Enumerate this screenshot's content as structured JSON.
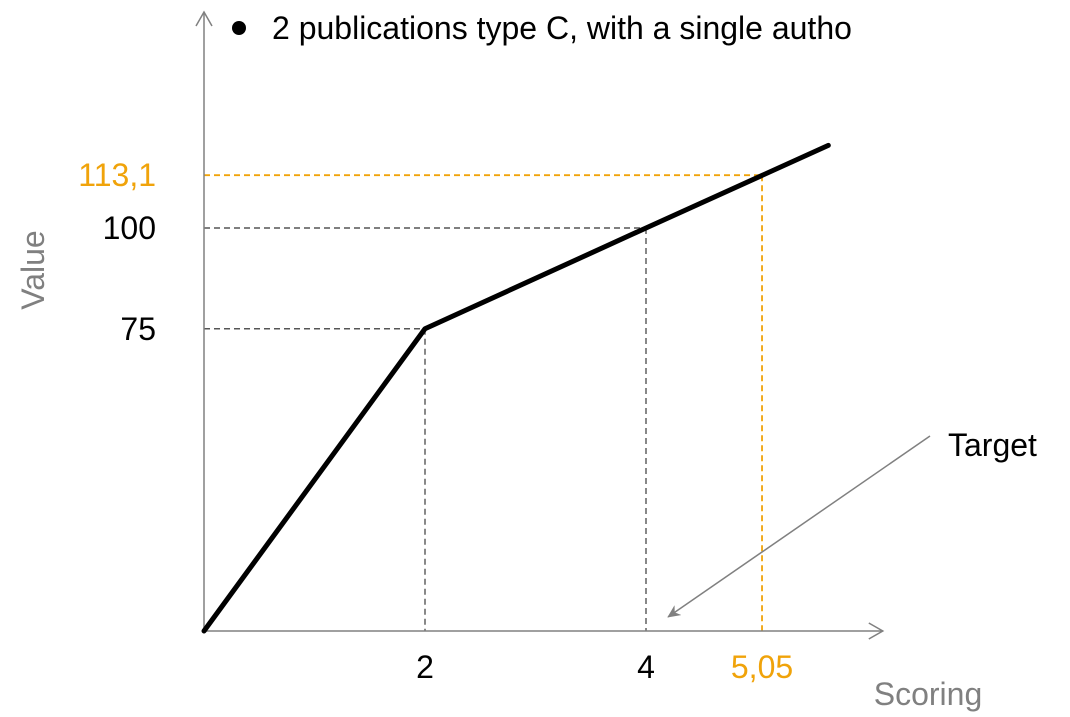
{
  "bullet_text": "2 publications type C, with a single autho",
  "colors": {
    "line": "#000000",
    "guide": "#555555",
    "highlight": "#F0A30A",
    "axis": "#808080",
    "annotation": "#808080"
  },
  "chart_data": {
    "type": "line",
    "title": "",
    "xlabel": "Scoring",
    "ylabel": "Value",
    "xlim": [
      0,
      5.6
    ],
    "ylim": [
      0,
      150
    ],
    "series": [
      {
        "x": [
          0,
          2,
          4,
          5.65
        ],
        "y": [
          0,
          75,
          100,
          120.5
        ]
      }
    ],
    "x_ticks": [
      {
        "value": 2,
        "label": "2"
      },
      {
        "value": 4,
        "label": "4"
      },
      {
        "value": 5.05,
        "label": "5,05",
        "highlight": true
      }
    ],
    "y_ticks": [
      {
        "value": 75,
        "label": "75"
      },
      {
        "value": 100,
        "label": "100"
      },
      {
        "value": 113.1,
        "label": "113,1",
        "highlight": true
      }
    ],
    "guides": [
      {
        "x": 2,
        "y": 75
      },
      {
        "x": 4,
        "y": 100
      },
      {
        "x": 5.05,
        "y": 113.1,
        "highlight": true
      }
    ],
    "annotations": [
      {
        "text": "Target",
        "points_to": {
          "x": 4.2,
          "y": 3.5
        }
      }
    ],
    "grid": false
  }
}
